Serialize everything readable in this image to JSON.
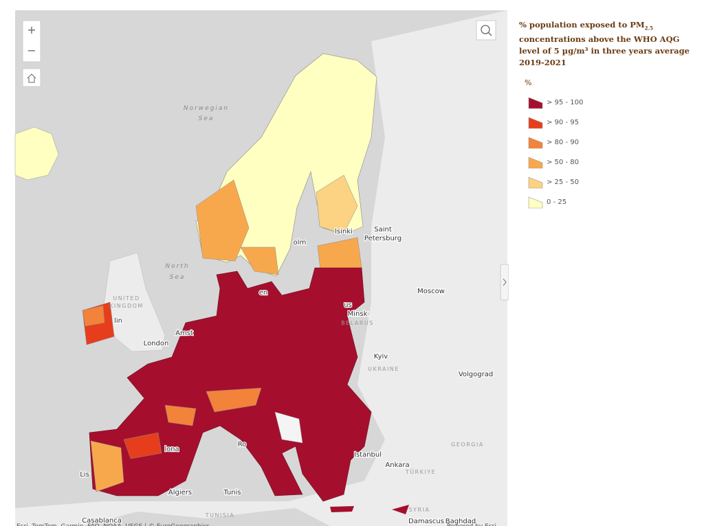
{
  "map": {
    "labels": [
      "Norwegian",
      "Sea",
      "North",
      "Sea",
      "UNITED",
      "KINGDOM",
      "London",
      "Saint",
      "Petersburg",
      "Moscow",
      "Minsk",
      "BELARUS",
      "Kyiv",
      "UKRAINE",
      "Volgograd",
      "Istanbul",
      "Ankara",
      "TÜRKIYE",
      "GEORGIA",
      "Algiers",
      "Tunis",
      "TUNISIA",
      "SYRIA",
      "Damascus",
      "Baghdad",
      "Casablanca",
      "olm",
      "lsinki",
      "en",
      "Amst",
      "lin",
      "lona",
      "Ro",
      "Lis",
      "us"
    ],
    "attribution": "Esri, TomTom, Garmin, FAO, NOAA, USGS | © EuroGeographics",
    "powered": "Powered by Esri"
  },
  "legend": {
    "title_before": "% population exposed to PM",
    "title_sub": "2.5",
    "title_after": " concentrations above the WHO AQG level of 5 µg/m³ in three years average 2019-2021",
    "unit": "%",
    "items": [
      {
        "label": "> 95 - 100",
        "color": "#a50f2d"
      },
      {
        "label": "> 90 - 95",
        "color": "#e63e1c"
      },
      {
        "label": "> 80 - 90",
        "color": "#f3823a"
      },
      {
        "label": "> 50 - 80",
        "color": "#f8a84c"
      },
      {
        "label": "> 25 - 50",
        "color": "#fcd283"
      },
      {
        "label": "0 - 25",
        "color": "#ffffc2"
      }
    ]
  }
}
